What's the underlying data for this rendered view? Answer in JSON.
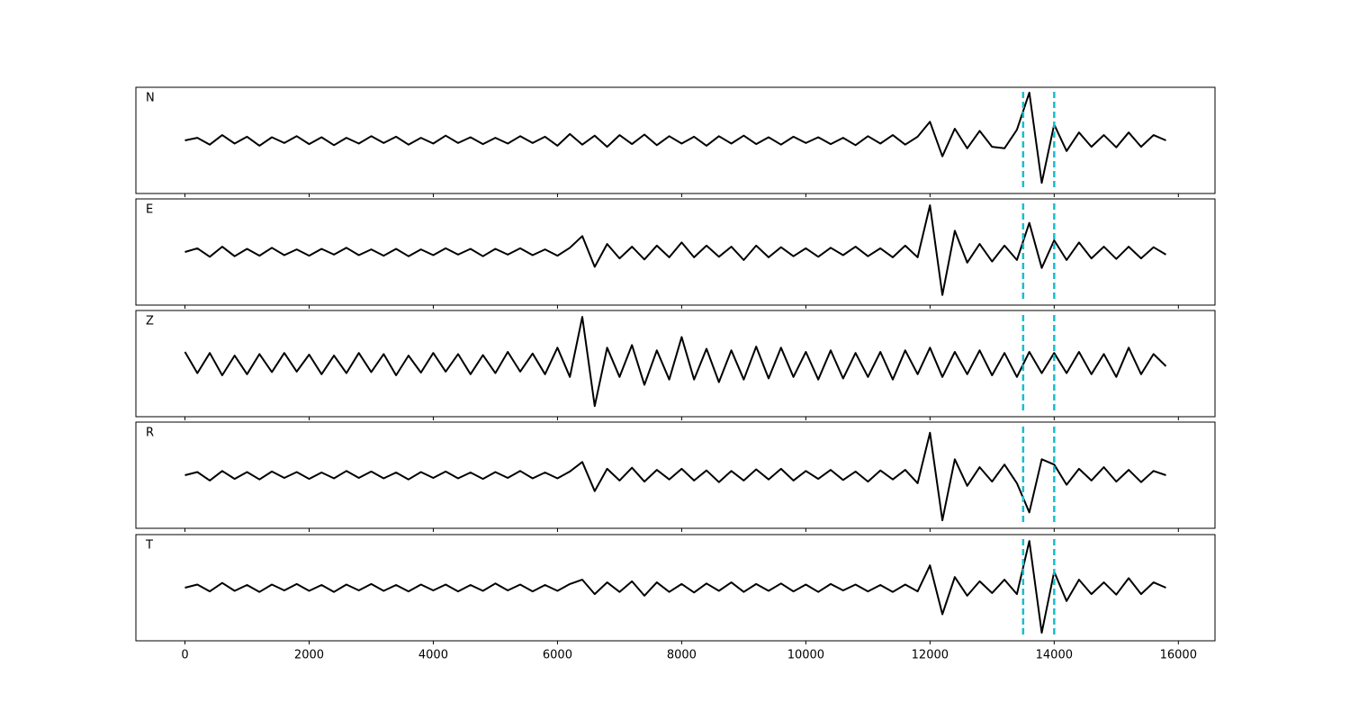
{
  "chart_data": {
    "type": "line",
    "x": [
      0,
      200,
      400,
      600,
      800,
      1000,
      1200,
      1400,
      1600,
      1800,
      2000,
      2200,
      2400,
      2600,
      2800,
      3000,
      3200,
      3400,
      3600,
      3800,
      4000,
      4200,
      4400,
      4600,
      4800,
      5000,
      5200,
      5400,
      5600,
      5800,
      6000,
      6200,
      6400,
      6600,
      6800,
      7000,
      7200,
      7400,
      7600,
      7800,
      8000,
      8200,
      8400,
      8600,
      8800,
      9000,
      9200,
      9400,
      9600,
      9800,
      10000,
      10200,
      10400,
      10600,
      10800,
      11000,
      11200,
      11400,
      11600,
      11800,
      12000,
      12200,
      12400,
      12600,
      12800,
      13000,
      13200,
      13400,
      13600,
      13800,
      14000,
      14200,
      14400,
      14600,
      14800,
      15000,
      15200,
      15400,
      15600,
      15800
    ],
    "series": [
      {
        "name": "N",
        "color": "#000000",
        "values": [
          0,
          0.05,
          -0.08,
          0.1,
          -0.06,
          0.07,
          -0.1,
          0.06,
          -0.05,
          0.08,
          -0.07,
          0.06,
          -0.09,
          0.05,
          -0.06,
          0.08,
          -0.05,
          0.07,
          -0.08,
          0.05,
          -0.06,
          0.09,
          -0.05,
          0.06,
          -0.07,
          0.05,
          -0.06,
          0.08,
          -0.05,
          0.07,
          -0.1,
          0.12,
          -0.08,
          0.09,
          -0.12,
          0.1,
          -0.07,
          0.11,
          -0.09,
          0.08,
          -0.06,
          0.07,
          -0.1,
          0.08,
          -0.06,
          0.09,
          -0.07,
          0.06,
          -0.08,
          0.07,
          -0.05,
          0.06,
          -0.07,
          0.05,
          -0.09,
          0.08,
          -0.06,
          0.1,
          -0.08,
          0.07,
          0.35,
          -0.3,
          0.22,
          -0.15,
          0.18,
          -0.12,
          -0.15,
          0.2,
          0.9,
          -0.8,
          0.3,
          -0.2,
          0.15,
          -0.12,
          0.1,
          -0.13,
          0.15,
          -0.12,
          0.1,
          0
        ]
      },
      {
        "name": "E",
        "color": "#000000",
        "values": [
          0,
          0.07,
          -0.09,
          0.1,
          -0.08,
          0.06,
          -0.07,
          0.08,
          -0.06,
          0.05,
          -0.07,
          0.06,
          -0.05,
          0.08,
          -0.06,
          0.05,
          -0.07,
          0.06,
          -0.08,
          0.05,
          -0.06,
          0.07,
          -0.05,
          0.06,
          -0.08,
          0.06,
          -0.05,
          0.07,
          -0.06,
          0.05,
          -0.07,
          0.08,
          0.3,
          -0.28,
          0.15,
          -0.12,
          0.1,
          -0.14,
          0.12,
          -0.1,
          0.18,
          -0.1,
          0.12,
          -0.09,
          0.1,
          -0.15,
          0.12,
          -0.1,
          0.09,
          -0.08,
          0.07,
          -0.09,
          0.08,
          -0.06,
          0.1,
          -0.08,
          0.07,
          -0.1,
          0.12,
          -0.1,
          0.88,
          -0.81,
          0.4,
          -0.2,
          0.15,
          -0.18,
          0.12,
          -0.15,
          0.55,
          -0.3,
          0.22,
          -0.15,
          0.18,
          -0.12,
          0.1,
          -0.13,
          0.1,
          -0.12,
          0.09,
          -0.05
        ]
      },
      {
        "name": "Z",
        "color": "#000000",
        "values": [
          0.22,
          -0.18,
          0.2,
          -0.22,
          0.15,
          -0.2,
          0.18,
          -0.16,
          0.2,
          -0.15,
          0.17,
          -0.2,
          0.15,
          -0.18,
          0.2,
          -0.16,
          0.18,
          -0.22,
          0.15,
          -0.17,
          0.2,
          -0.15,
          0.18,
          -0.2,
          0.16,
          -0.18,
          0.22,
          -0.15,
          0.19,
          -0.2,
          0.3,
          -0.25,
          0.88,
          -0.8,
          0.3,
          -0.25,
          0.35,
          -0.4,
          0.25,
          -0.3,
          0.5,
          -0.3,
          0.28,
          -0.35,
          0.25,
          -0.3,
          0.32,
          -0.28,
          0.3,
          -0.25,
          0.22,
          -0.3,
          0.25,
          -0.28,
          0.2,
          -0.25,
          0.22,
          -0.3,
          0.25,
          -0.2,
          0.3,
          -0.25,
          0.22,
          -0.2,
          0.25,
          -0.22,
          0.2,
          -0.25,
          0.22,
          -0.18,
          0.2,
          -0.18,
          0.22,
          -0.2,
          0.18,
          -0.25,
          0.3,
          -0.2,
          0.18,
          -0.05
        ]
      },
      {
        "name": "R",
        "color": "#000000",
        "values": [
          0,
          0.06,
          -0.1,
          0.08,
          -0.07,
          0.06,
          -0.08,
          0.07,
          -0.05,
          0.06,
          -0.07,
          0.05,
          -0.06,
          0.08,
          -0.05,
          0.07,
          -0.06,
          0.05,
          -0.08,
          0.06,
          -0.05,
          0.07,
          -0.06,
          0.05,
          -0.07,
          0.06,
          -0.05,
          0.08,
          -0.06,
          0.05,
          -0.06,
          0.07,
          0.25,
          -0.3,
          0.12,
          -0.1,
          0.14,
          -0.12,
          0.1,
          -0.08,
          0.12,
          -0.1,
          0.09,
          -0.13,
          0.08,
          -0.1,
          0.11,
          -0.08,
          0.12,
          -0.1,
          0.08,
          -0.07,
          0.1,
          -0.09,
          0.07,
          -0.12,
          0.09,
          -0.08,
          0.1,
          -0.15,
          0.8,
          -0.85,
          0.3,
          -0.2,
          0.15,
          -0.12,
          0.2,
          -0.15,
          -0.7,
          0.3,
          0.2,
          -0.18,
          0.12,
          -0.1,
          0.15,
          -0.12,
          0.1,
          -0.13,
          0.08,
          0
        ]
      },
      {
        "name": "T",
        "color": "#000000",
        "values": [
          0,
          0.06,
          -0.07,
          0.09,
          -0.06,
          0.05,
          -0.08,
          0.06,
          -0.05,
          0.07,
          -0.06,
          0.05,
          -0.08,
          0.06,
          -0.05,
          0.07,
          -0.06,
          0.05,
          -0.07,
          0.06,
          -0.05,
          0.06,
          -0.07,
          0.05,
          -0.06,
          0.08,
          -0.05,
          0.06,
          -0.07,
          0.05,
          -0.06,
          0.07,
          0.15,
          -0.12,
          0.1,
          -0.08,
          0.12,
          -0.15,
          0.1,
          -0.08,
          0.07,
          -0.09,
          0.08,
          -0.06,
          0.1,
          -0.08,
          0.07,
          -0.06,
          0.08,
          -0.07,
          0.06,
          -0.08,
          0.07,
          -0.05,
          0.06,
          -0.07,
          0.05,
          -0.08,
          0.06,
          -0.07,
          0.42,
          -0.5,
          0.2,
          -0.15,
          0.12,
          -0.1,
          0.15,
          -0.12,
          0.88,
          -0.85,
          0.3,
          -0.25,
          0.15,
          -0.12,
          0.1,
          -0.13,
          0.18,
          -0.12,
          0.1,
          0
        ]
      }
    ],
    "markers": {
      "values": [
        13500,
        14000
      ],
      "color": "#17becf"
    },
    "xlim": [
      -790,
      16590
    ],
    "xticks": [
      0,
      2000,
      4000,
      6000,
      8000,
      10000,
      12000,
      14000,
      16000
    ],
    "ylim": [
      -1,
      1
    ]
  }
}
